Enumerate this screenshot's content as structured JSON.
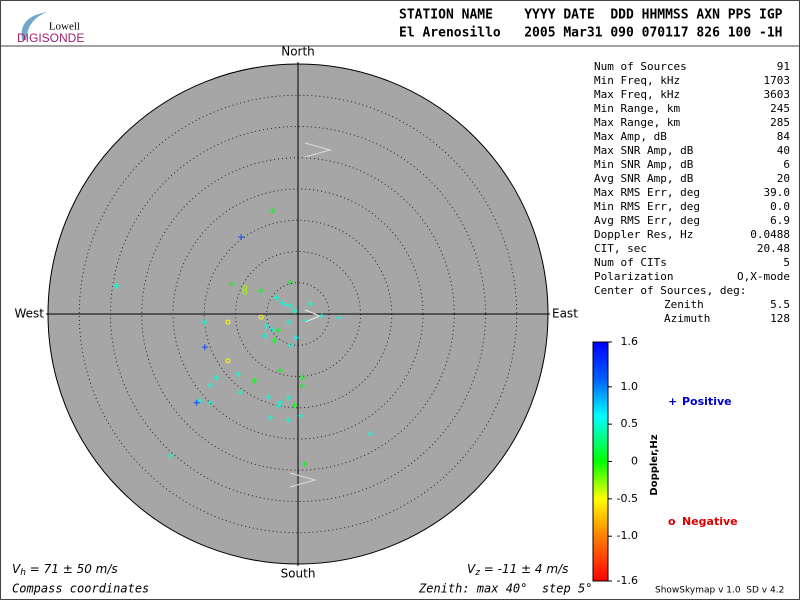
{
  "header": {
    "logo": {
      "top": "Lowell",
      "bottom": "DIGISONDE"
    },
    "line1": "STATION NAME    YYYY DATE  DDD HHMMSS AXN PPS IGP",
    "line2": "El Arenosillo   2005 Mar31 090 070117 826 100 -1H"
  },
  "stats": [
    [
      "Num of Sources",
      "91"
    ],
    [
      "Min Freq, kHz",
      "1703"
    ],
    [
      "Max Freq, kHz",
      "3603"
    ],
    [
      "Min Range, km",
      "245"
    ],
    [
      "Max Range, km",
      "285"
    ],
    [
      "Max Amp, dB",
      "84"
    ],
    [
      "Max SNR Amp, dB",
      "40"
    ],
    [
      "Min SNR Amp, dB",
      "6"
    ],
    [
      "Avg SNR Amp, dB",
      "20"
    ],
    [
      "Max RMS Err, deg",
      "39.0"
    ],
    [
      "Min RMS Err, deg",
      "0.0"
    ],
    [
      "Avg RMS Err, deg",
      "6.9"
    ],
    [
      "Doppler Res, Hz",
      "0.0488"
    ],
    [
      "CIT, sec",
      "20.48"
    ],
    [
      "Num of CITs",
      "5"
    ],
    [
      "Polarization",
      "O,X-mode"
    ]
  ],
  "center": {
    "title": "Center of Sources, deg:",
    "rows": [
      [
        "Zenith",
        "5.5"
      ],
      [
        "Azimuth",
        "128"
      ]
    ]
  },
  "chart_data": {
    "type": "skymap",
    "directions": {
      "north": "North",
      "south": "South",
      "east": "East",
      "west": "West"
    },
    "rlim": [
      0,
      40
    ],
    "rticks": [
      5,
      10,
      15,
      20,
      25,
      30,
      35,
      40
    ],
    "points": {
      "east": [
        -4,
        -9.1,
        -29,
        -10.6,
        -8.5,
        -8.5,
        -1.3,
        -5.9,
        -3.4,
        -2.4,
        -1.3,
        2.1,
        3.8,
        6.6,
        -14.9,
        -11.2,
        -5.9,
        -5.1,
        -3.2,
        -1.6,
        -0.3,
        -14.9,
        -5.3,
        -3.8,
        -1.3,
        -11.2,
        -9.6,
        -7,
        -2.9,
        0.8,
        0.6,
        -13.1,
        -14.1,
        -15.7,
        -16.2,
        -14.1,
        -9.3,
        -4.8,
        -2.9,
        -1.6,
        -0.6,
        -3.2,
        -4.5,
        -1.6,
        0.5,
        11.5,
        -20.5,
        1.1,
        -4,
        -2,
        -0.5,
        1.2
      ],
      "north": [
        16.5,
        12.3,
        4.5,
        4.8,
        4.2,
        3.5,
        5.1,
        3.7,
        2.6,
        1.8,
        1.3,
        1.6,
        -0.3,
        -0.6,
        -1.3,
        -1.3,
        -0.5,
        -1.9,
        -2.6,
        -1.3,
        -3.8,
        -5.3,
        -3.5,
        -4.2,
        -5,
        -7.5,
        -9.6,
        -10.7,
        -9,
        -10.2,
        -11.5,
        -10.2,
        -11.4,
        -13.8,
        -14.2,
        -14.2,
        -12.5,
        -13.3,
        -14.1,
        -13.4,
        -14.6,
        -14.7,
        -16.6,
        -17,
        -16.3,
        -19.2,
        -22.7,
        -24,
        -2.5,
        1.5,
        0.5,
        -1
      ],
      "doppler": [
        0.05,
        1.2,
        0.5,
        0.05,
        -0.3,
        -0.3,
        0.05,
        0.05,
        0.5,
        0.5,
        0.5,
        0.5,
        0.5,
        0.5,
        0.5,
        -0.5,
        -0.5,
        0.5,
        0.05,
        0.5,
        0.6,
        1.2,
        0.5,
        0.05,
        0.5,
        -0.5,
        0.5,
        0.05,
        0.05,
        0.05,
        0.05,
        0.5,
        0.5,
        0.5,
        1.2,
        0.5,
        0.5,
        0.5,
        0.5,
        0.5,
        0.05,
        0.5,
        0.5,
        0.5,
        0.5,
        0.5,
        0.5,
        0.05,
        0.5,
        0.5,
        0.5,
        0.5
      ]
    },
    "colorbar": {
      "label": "Doppler,Hz",
      "lim": [
        -1.6,
        1.6
      ],
      "ticks": [
        1.6,
        {
          "value": 1,
          "label": "1.0"
        },
        0.5,
        0,
        -0.5,
        {
          "value": -1,
          "label": "-1.0"
        },
        -1.6
      ]
    },
    "legend": [
      {
        "symbol": "+",
        "name": "Positive",
        "color": "#0000cc"
      },
      {
        "symbol": "o",
        "name": "Negative",
        "color": "#dd0000"
      }
    ]
  },
  "footer": {
    "vh": {
      "symbol": "V",
      "sub": "h",
      "text": " = 71 ± 50 m/s"
    },
    "vz": {
      "symbol": "V",
      "sub": "z",
      "text": " = -11 ± 4 m/s"
    },
    "coords": "Compass coordinates",
    "zenith": "Zenith: max 40°  step 5°",
    "version": "ShowSkymap v 1.0  SD v 4.2"
  }
}
